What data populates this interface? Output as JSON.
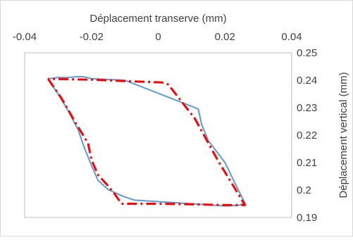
{
  "chart_data": {
    "type": "line",
    "title": "",
    "xlabel": "Déplacement transerve (mm)",
    "ylabel": "Déplacement vertical (mm)",
    "xlim": [
      -0.04,
      0.04
    ],
    "ylim": [
      0.19,
      0.25
    ],
    "x_ticks": [
      "-0.04",
      "-0.02",
      "0",
      "0.02",
      "0.04"
    ],
    "y_ticks": [
      "0.25",
      "0.24",
      "0.23",
      "0.22",
      "0.21",
      "0.2",
      "0.19"
    ],
    "x_axis_position": "top",
    "y_axis_position": "right",
    "grid": false,
    "legend": "none",
    "series": [
      {
        "color": "#5b9bd5",
        "style": "solid",
        "x": [
          -0.033,
          -0.03,
          -0.027,
          -0.024,
          -0.022,
          -0.02,
          -0.018,
          -0.015,
          -0.012,
          -0.01,
          -0.007,
          0.01,
          0.02,
          0.024,
          0.026,
          0.024,
          0.02,
          0.015,
          0.013,
          0.012,
          0.01,
          -0.01,
          -0.02,
          -0.022,
          -0.024,
          -0.027,
          -0.03,
          -0.033
        ],
        "y": [
          0.2405,
          0.235,
          0.229,
          0.222,
          0.215,
          0.209,
          0.2035,
          0.2002,
          0.1985,
          0.1975,
          0.1963,
          0.195,
          0.1942,
          0.1944,
          0.1952,
          0.2,
          0.21,
          0.218,
          0.224,
          0.2295,
          0.2305,
          0.24,
          0.2406,
          0.2412,
          0.2413,
          0.241,
          0.241,
          0.2405
        ]
      },
      {
        "color": "#ff0000",
        "style": "dash-dot",
        "x": [
          -0.033,
          -0.029,
          -0.025,
          -0.021,
          -0.02,
          -0.018,
          -0.015,
          -0.013,
          -0.011,
          0.0,
          0.01,
          0.021,
          0.026,
          0.023,
          0.018,
          0.011,
          0.003,
          0.001,
          -0.01,
          -0.02,
          -0.033
        ],
        "y": [
          0.2405,
          0.2335,
          0.225,
          0.217,
          0.211,
          0.2055,
          0.2015,
          0.1985,
          0.195,
          0.195,
          0.1948,
          0.1945,
          0.1945,
          0.2005,
          0.2105,
          0.226,
          0.2385,
          0.2392,
          0.2397,
          0.2402,
          0.2405
        ]
      }
    ]
  }
}
